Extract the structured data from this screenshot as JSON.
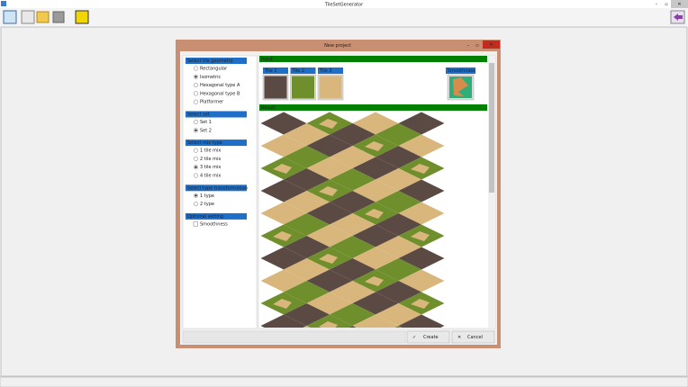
{
  "window": {
    "title": "TileSetGenerator"
  },
  "dialog": {
    "title": "New project",
    "groups": [
      {
        "title": "Select tile geometry",
        "options": [
          "Rectangular",
          "Isometric",
          "Hexagonal type A",
          "Hexagonal type B",
          "Platformer"
        ],
        "selected": 1
      },
      {
        "title": "Select set",
        "options": [
          "Set 1",
          "Set 2"
        ],
        "selected": 1
      },
      {
        "title": "Select mix type",
        "options": [
          "1 tile mix",
          "2 tile mix",
          "3 tile mix",
          "4 tile mix"
        ],
        "selected": 2
      },
      {
        "title": "Select type transformation",
        "options": [
          "1 type",
          "2 type"
        ],
        "selected": 0
      },
      {
        "title": "Optional setting",
        "checkboxes": [
          "Smoothness"
        ]
      }
    ],
    "input": {
      "title": "Input",
      "tiles": [
        "Tile 1",
        "Tile 2",
        "Tile 3"
      ],
      "smoothness": "Smoothness"
    },
    "result": {
      "title": "Result"
    },
    "buttons": {
      "create": "Create",
      "cancel": "Cancel"
    }
  }
}
